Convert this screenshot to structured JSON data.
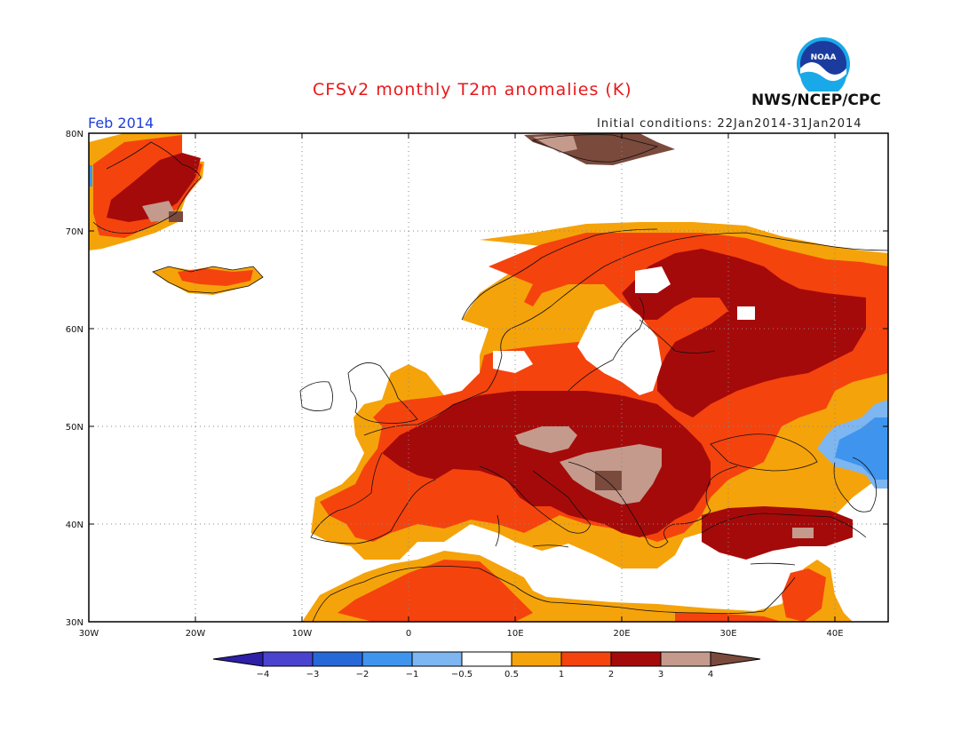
{
  "header": {
    "title": "CFSv2 monthly T2m anomalies (K)",
    "agency": "NWS/NCEP/CPC",
    "logo_text": "NOAA",
    "month_label": "Feb 2014",
    "initial_conditions": "Initial conditions: 22Jan2014-31Jan2014"
  },
  "axes": {
    "lat_labels": [
      "80N",
      "70N",
      "60N",
      "50N",
      "40N",
      "30N"
    ],
    "lon_labels": [
      "30W",
      "20W",
      "10W",
      "0",
      "10E",
      "20E",
      "30E",
      "40E"
    ]
  },
  "colorbar": {
    "tick_labels": [
      "-4",
      "-3",
      "-2",
      "-1",
      "-0.5",
      "0.5",
      "1",
      "2",
      "3",
      "4"
    ],
    "colors": [
      "#2d1fa8",
      "#4a43d0",
      "#2768d8",
      "#3f95ee",
      "#7eb6f2",
      "#ffffff",
      "#f5a30a",
      "#f5430e",
      "#a50a0a",
      "#c49a8c",
      "#7a4a3c"
    ]
  },
  "legend_colors": {
    "white": "#ffffff",
    "orange": "#f5a30a",
    "redorange": "#f5430e",
    "darkred": "#a50a0a",
    "tan": "#c49a8c",
    "brown": "#7a4a3c",
    "lightblue": "#7eb6f2",
    "blue": "#3f95ee"
  }
}
